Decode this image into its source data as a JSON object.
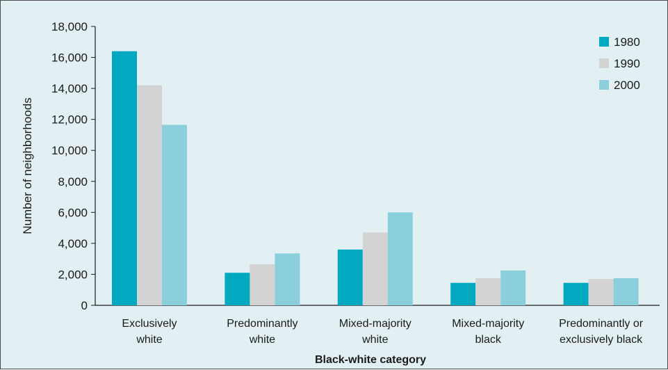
{
  "chart_data": {
    "type": "bar",
    "title": "",
    "xlabel": "Black-white category",
    "ylabel": "Number of neighborhoods",
    "ylim": [
      0,
      18000
    ],
    "yticks": [
      0,
      2000,
      4000,
      6000,
      8000,
      10000,
      12000,
      14000,
      16000,
      18000
    ],
    "ytick_labels": [
      "0",
      "2,000",
      "4,000",
      "6,000",
      "8,000",
      "10,000",
      "12,000",
      "14,000",
      "16,000",
      "18,000"
    ],
    "categories": [
      [
        "Exclusively",
        "white"
      ],
      [
        "Predominantly",
        "white"
      ],
      [
        "Mixed-majority",
        "white"
      ],
      [
        "Mixed-majority",
        "black"
      ],
      [
        "Predominantly or",
        "exclusively black"
      ]
    ],
    "series": [
      {
        "name": "1980",
        "color": "#00a9c0",
        "values": [
          16400,
          2100,
          3600,
          1450,
          1450
        ]
      },
      {
        "name": "1990",
        "color": "#d3d3d3",
        "values": [
          14200,
          2650,
          4700,
          1750,
          1700
        ]
      },
      {
        "name": "2000",
        "color": "#8ccfdc",
        "values": [
          11650,
          3350,
          6000,
          2250,
          1750
        ]
      }
    ],
    "grid": false,
    "legend_position": "top-right",
    "background": "#e2f0f3"
  }
}
